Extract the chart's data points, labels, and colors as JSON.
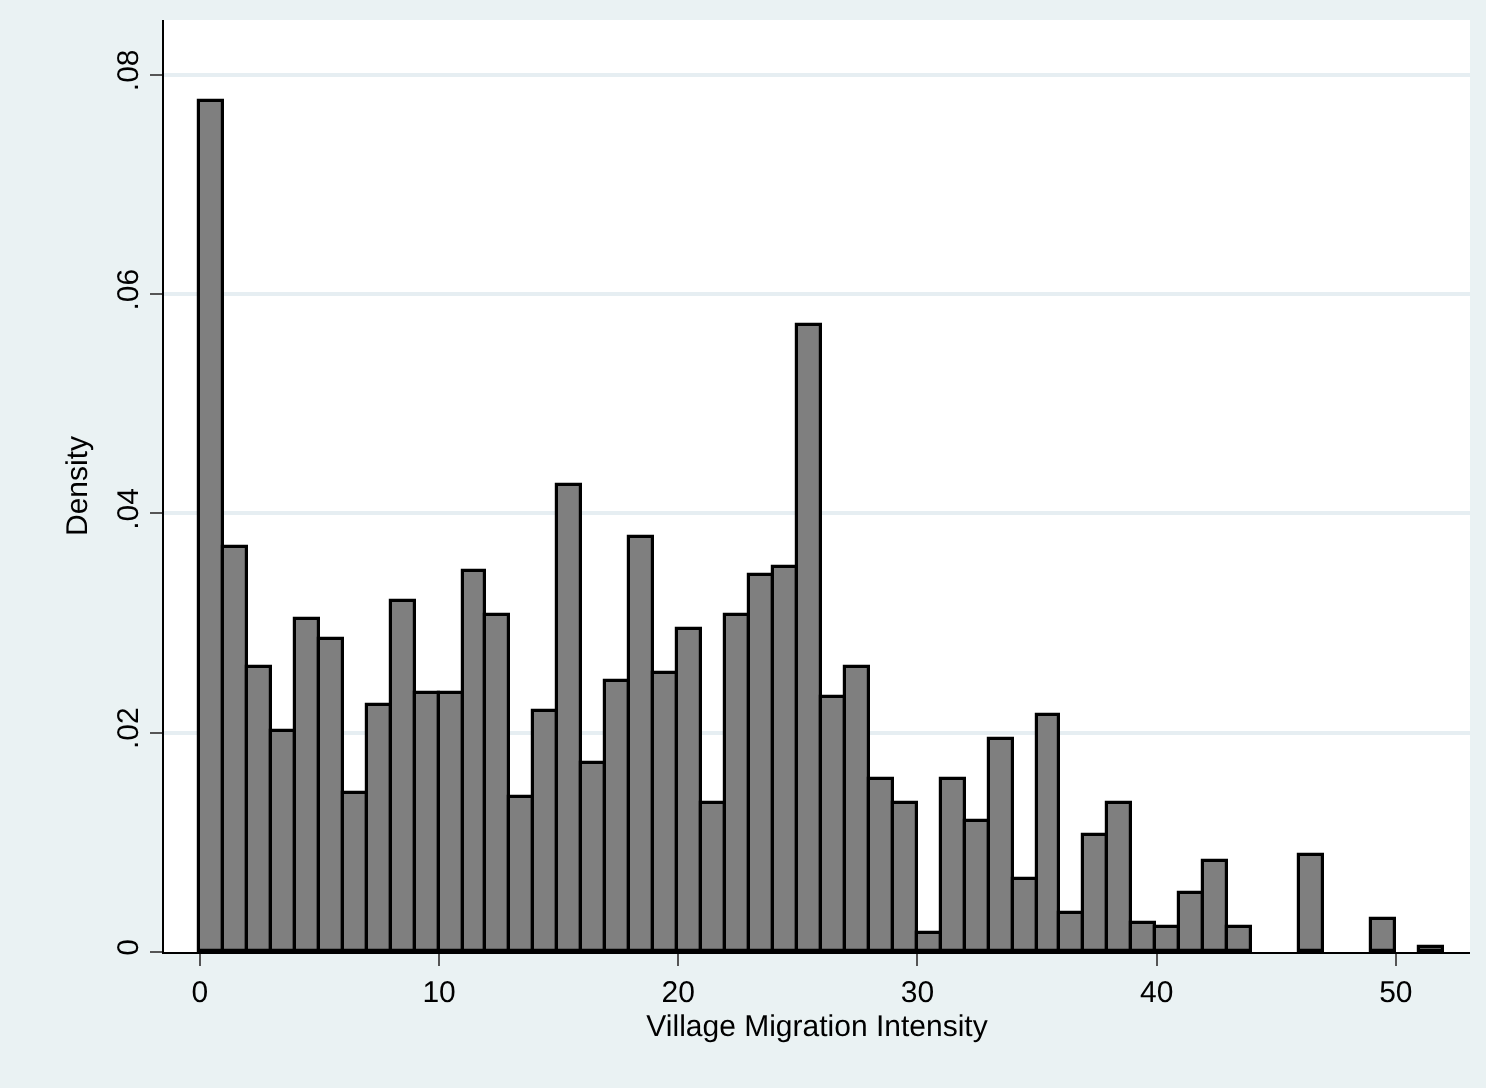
{
  "chart_data": {
    "type": "histogram",
    "xlabel": "Village Migration Intensity",
    "ylabel": "Density",
    "color": "#7f7f7f",
    "bins": [
      0,
      1,
      2,
      3,
      4,
      5,
      6,
      7,
      8,
      9,
      10,
      11,
      12,
      13,
      14,
      15,
      16,
      17,
      18,
      19,
      20,
      21,
      22,
      23,
      24,
      25,
      26,
      27,
      28,
      29,
      30,
      31,
      32,
      33,
      34,
      35,
      36,
      37,
      38,
      39,
      40,
      41,
      42,
      43,
      44,
      45,
      46,
      47,
      48,
      49,
      50,
      51,
      52
    ],
    "values": [
      0.0776,
      0.0368,
      0.0259,
      0.0201,
      0.0302,
      0.0285,
      0.0145,
      0.0224,
      0.032,
      0.0236,
      0.0236,
      0.0346,
      0.0307,
      0.014,
      0.0219,
      0.0425,
      0.0172,
      0.0246,
      0.0377,
      0.0254,
      0.0294,
      0.0135,
      0.0307,
      0.0343,
      0.0351,
      0.0571,
      0.0232,
      0.0259,
      0.0157,
      0.0135,
      0.0016,
      0.0157,
      0.0119,
      0.0193,
      0.0065,
      0.0216,
      0.0035,
      0.0105,
      0.0135,
      0.0025,
      0.0021,
      0.0053,
      0.0083,
      0.0021,
      0,
      0,
      0.0087,
      0,
      0,
      0.003,
      0,
      0.0004
    ],
    "xlim": [
      -1.5,
      53.1
    ],
    "ylim": [
      0,
      0.085
    ],
    "xticks": [
      0,
      10,
      20,
      30,
      40,
      50
    ],
    "yticks": [
      0,
      {
        "value": 0.02,
        "label": ".02"
      },
      {
        "value": 0.04,
        "label": ".04"
      },
      {
        "value": 0.06,
        "label": ".06"
      },
      {
        "value": 0.08,
        "label": ".08"
      }
    ],
    "grid": "y"
  }
}
